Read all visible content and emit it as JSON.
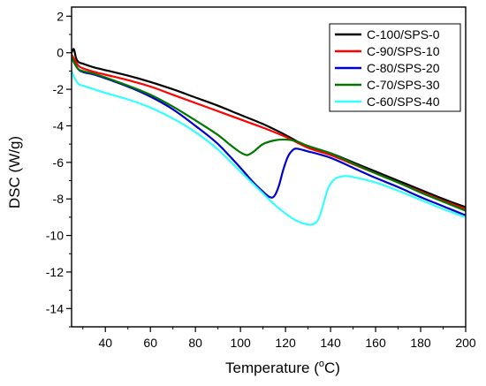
{
  "chart_data": {
    "type": "line",
    "xlabel": "Temperature (",
    "xlabel_sup": "o",
    "xlabel_suffix": "C)",
    "ylabel": "DSC (W/g)",
    "xlim": [
      25,
      200
    ],
    "ylim": [
      -15,
      2.5
    ],
    "x_ticks": [
      40,
      60,
      80,
      100,
      120,
      140,
      160,
      180,
      200
    ],
    "y_ticks": [
      2,
      0,
      -2,
      -4,
      -6,
      -8,
      -10,
      -12,
      -14
    ],
    "legend_position": "top-right",
    "series": [
      {
        "name": "C-100/SPS-0",
        "color": "#000000",
        "points": [
          [
            25,
            0.0
          ],
          [
            26,
            0.2
          ],
          [
            27,
            -0.3
          ],
          [
            28,
            -0.5
          ],
          [
            30,
            -0.6
          ],
          [
            35,
            -0.8
          ],
          [
            40,
            -0.95
          ],
          [
            50,
            -1.25
          ],
          [
            60,
            -1.6
          ],
          [
            70,
            -2.0
          ],
          [
            80,
            -2.45
          ],
          [
            90,
            -2.9
          ],
          [
            100,
            -3.4
          ],
          [
            110,
            -3.9
          ],
          [
            120,
            -4.5
          ],
          [
            130,
            -5.15
          ],
          [
            140,
            -5.5
          ],
          [
            150,
            -6.0
          ],
          [
            160,
            -6.5
          ],
          [
            170,
            -7.0
          ],
          [
            180,
            -7.5
          ],
          [
            190,
            -8.0
          ],
          [
            200,
            -8.45
          ]
        ]
      },
      {
        "name": "C-90/SPS-10",
        "color": "#ff0000",
        "points": [
          [
            25,
            -0.1
          ],
          [
            26,
            -0.3
          ],
          [
            28,
            -0.7
          ],
          [
            30,
            -0.85
          ],
          [
            35,
            -1.05
          ],
          [
            40,
            -1.2
          ],
          [
            50,
            -1.5
          ],
          [
            60,
            -1.85
          ],
          [
            70,
            -2.3
          ],
          [
            80,
            -2.75
          ],
          [
            90,
            -3.2
          ],
          [
            100,
            -3.65
          ],
          [
            110,
            -4.1
          ],
          [
            120,
            -4.6
          ],
          [
            130,
            -5.2
          ],
          [
            140,
            -5.6
          ],
          [
            150,
            -6.1
          ],
          [
            160,
            -6.6
          ],
          [
            170,
            -7.1
          ],
          [
            180,
            -7.6
          ],
          [
            190,
            -8.1
          ],
          [
            200,
            -8.55
          ]
        ]
      },
      {
        "name": "C-80/SPS-20",
        "color": "#0000cc",
        "points": [
          [
            25,
            -0.3
          ],
          [
            26,
            -0.5
          ],
          [
            28,
            -0.9
          ],
          [
            30,
            -1.05
          ],
          [
            35,
            -1.2
          ],
          [
            40,
            -1.4
          ],
          [
            50,
            -1.85
          ],
          [
            60,
            -2.4
          ],
          [
            70,
            -3.1
          ],
          [
            80,
            -4.0
          ],
          [
            90,
            -5.0
          ],
          [
            100,
            -6.3
          ],
          [
            105,
            -7.0
          ],
          [
            110,
            -7.6
          ],
          [
            113,
            -7.9
          ],
          [
            115,
            -7.85
          ],
          [
            117,
            -7.3
          ],
          [
            119,
            -6.4
          ],
          [
            121,
            -5.7
          ],
          [
            123,
            -5.35
          ],
          [
            125,
            -5.25
          ],
          [
            130,
            -5.4
          ],
          [
            140,
            -5.75
          ],
          [
            150,
            -6.3
          ],
          [
            160,
            -6.85
          ],
          [
            170,
            -7.35
          ],
          [
            180,
            -7.9
          ],
          [
            190,
            -8.4
          ],
          [
            200,
            -8.9
          ]
        ]
      },
      {
        "name": "C-70/SPS-30",
        "color": "#007700",
        "points": [
          [
            25,
            -0.2
          ],
          [
            26,
            -0.5
          ],
          [
            28,
            -0.9
          ],
          [
            30,
            -1.0
          ],
          [
            35,
            -1.15
          ],
          [
            40,
            -1.35
          ],
          [
            50,
            -1.8
          ],
          [
            60,
            -2.3
          ],
          [
            70,
            -2.95
          ],
          [
            80,
            -3.7
          ],
          [
            90,
            -4.5
          ],
          [
            95,
            -5.0
          ],
          [
            100,
            -5.45
          ],
          [
            103,
            -5.6
          ],
          [
            106,
            -5.4
          ],
          [
            110,
            -5.0
          ],
          [
            115,
            -4.8
          ],
          [
            120,
            -4.75
          ],
          [
            125,
            -4.85
          ],
          [
            130,
            -5.1
          ],
          [
            140,
            -5.5
          ],
          [
            150,
            -6.05
          ],
          [
            160,
            -6.6
          ],
          [
            170,
            -7.1
          ],
          [
            180,
            -7.65
          ],
          [
            190,
            -8.15
          ],
          [
            200,
            -8.65
          ]
        ]
      },
      {
        "name": "C-60/SPS-40",
        "color": "#33ffff",
        "points": [
          [
            25,
            -1.0
          ],
          [
            26,
            -1.3
          ],
          [
            28,
            -1.7
          ],
          [
            30,
            -1.8
          ],
          [
            35,
            -2.0
          ],
          [
            40,
            -2.2
          ],
          [
            50,
            -2.55
          ],
          [
            60,
            -3.0
          ],
          [
            70,
            -3.6
          ],
          [
            80,
            -4.35
          ],
          [
            90,
            -5.3
          ],
          [
            100,
            -6.5
          ],
          [
            110,
            -7.7
          ],
          [
            115,
            -8.3
          ],
          [
            120,
            -8.8
          ],
          [
            125,
            -9.2
          ],
          [
            130,
            -9.4
          ],
          [
            133,
            -9.35
          ],
          [
            135,
            -9.0
          ],
          [
            137,
            -8.2
          ],
          [
            139,
            -7.4
          ],
          [
            142,
            -6.9
          ],
          [
            146,
            -6.75
          ],
          [
            150,
            -6.8
          ],
          [
            160,
            -7.1
          ],
          [
            170,
            -7.55
          ],
          [
            180,
            -8.05
          ],
          [
            190,
            -8.55
          ],
          [
            200,
            -9.0
          ]
        ]
      }
    ]
  }
}
